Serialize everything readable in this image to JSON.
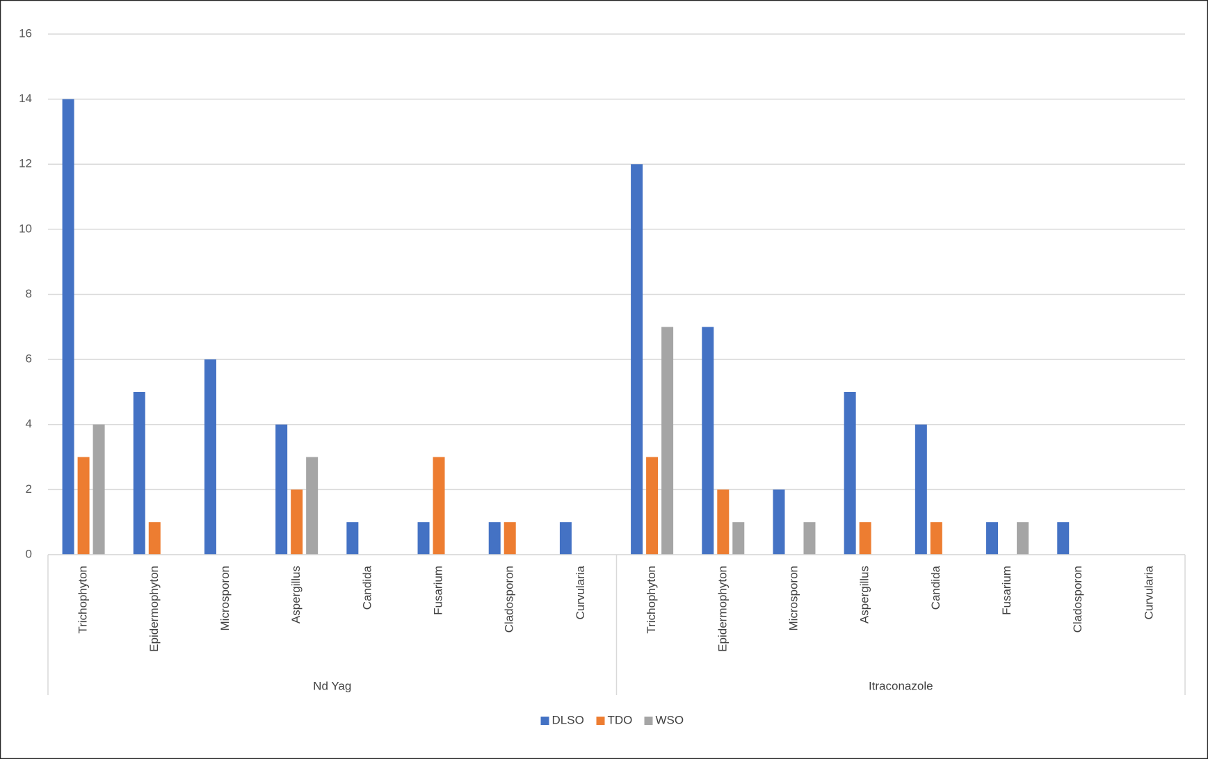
{
  "chart_data": {
    "type": "bar",
    "categories": [
      "Trichophyton",
      "Epidermophyton",
      "Microsporon",
      "Aspergillus",
      "Candida",
      "Fusarium",
      "Cladosporon",
      "Curvularia",
      "Trichophyton",
      "Epidermophyton",
      "Microsporon",
      "Aspergillus",
      "Candida",
      "Fusarium",
      "Cladosporon",
      "Curvularia"
    ],
    "group_labels": [
      "Nd Yag",
      "Itraconazole"
    ],
    "series": [
      {
        "name": "DLSO",
        "color": "#4472c4",
        "values": [
          14,
          5,
          6,
          4,
          1,
          1,
          1,
          1,
          12,
          7,
          2,
          5,
          4,
          1,
          1,
          0
        ]
      },
      {
        "name": "TDO",
        "color": "#ed7d31",
        "values": [
          3,
          1,
          0,
          2,
          0,
          3,
          1,
          0,
          3,
          2,
          0,
          1,
          1,
          0,
          0,
          0
        ]
      },
      {
        "name": "WSO",
        "color": "#a5a5a5",
        "values": [
          4,
          0,
          0,
          3,
          0,
          0,
          0,
          0,
          7,
          1,
          1,
          0,
          0,
          1,
          0,
          0
        ]
      }
    ],
    "ylim": [
      0,
      16
    ],
    "yticks": [
      0,
      2,
      4,
      6,
      8,
      10,
      12,
      14,
      16
    ],
    "grid": true,
    "legend": "bottom"
  }
}
